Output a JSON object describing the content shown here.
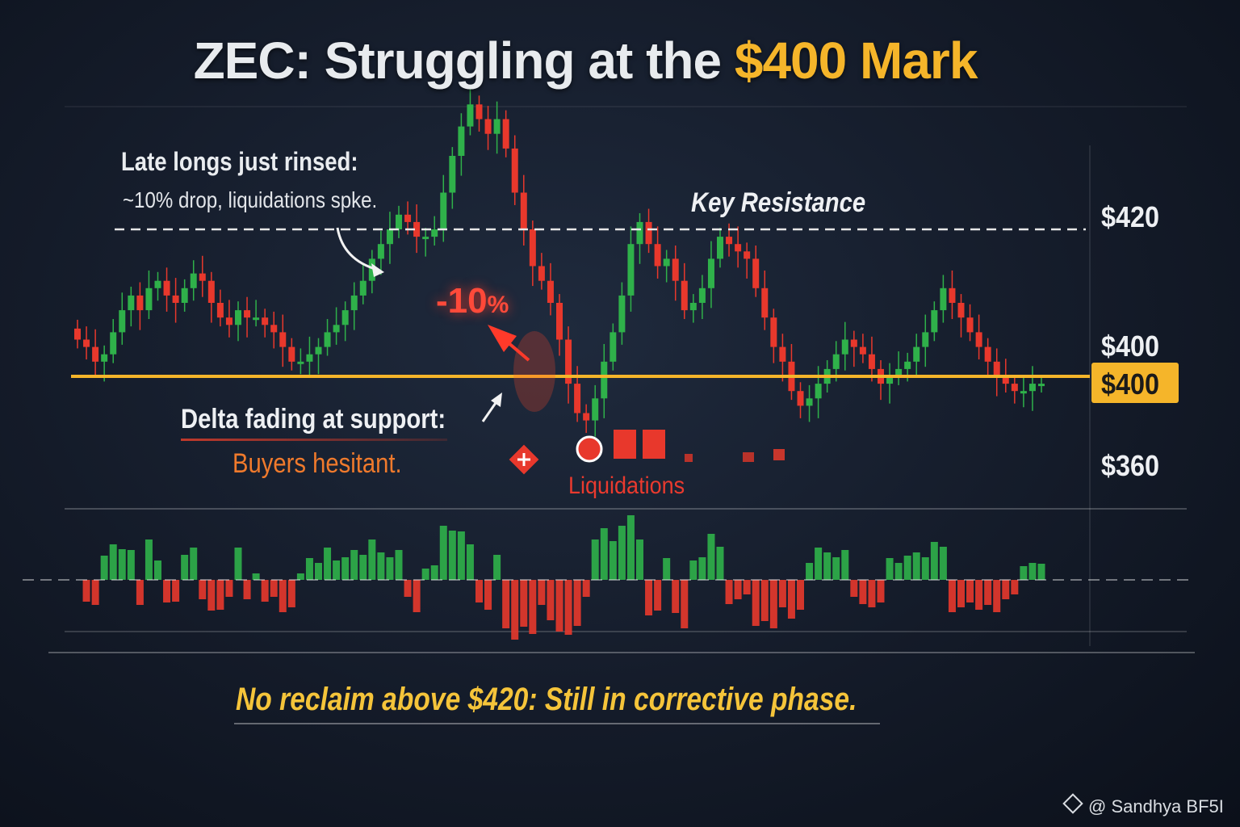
{
  "title": {
    "main": "ZEC: Struggling at the ",
    "accent": "$400 Mark"
  },
  "annotations": {
    "late_longs": "Late longs just rinsed:",
    "drop_note": "~10% drop, liquidations spke.",
    "key_resistance": "Key Resistance",
    "delta_fading": "Delta fading at support:",
    "buyers": "Buyers hesitant.",
    "liquidations": "Liquidations",
    "drop_value": "-10",
    "drop_pct": "%",
    "footer": "No reclaim above $420: Still in corrective phase."
  },
  "price_labels": {
    "p420": "$420",
    "p400": "$400",
    "p400_highlight": "$400",
    "p360": "$360"
  },
  "watermark": {
    "icon": "binance-diamond-icon",
    "text": "@ Sandhya BF5I"
  },
  "colors": {
    "up": "#2fb14a",
    "down": "#e8382c",
    "support": "#f5b52a",
    "resistance": "#e6e6e6",
    "accent": "#f5b52a"
  },
  "chart_data": {
    "type": "candlestick",
    "title": "ZEC: Struggling at the $400 Mark",
    "levels": {
      "resistance": 420,
      "support": 400
    },
    "close": [
      405,
      404,
      402,
      403,
      406,
      409,
      411,
      409,
      412,
      413,
      411,
      410,
      412,
      414,
      413,
      410,
      408,
      407,
      409,
      408,
      408,
      407,
      406,
      404,
      402,
      402,
      403,
      404,
      406,
      407,
      409,
      411,
      413,
      416,
      418,
      420,
      422,
      421,
      419,
      419,
      420,
      425,
      430,
      434,
      437,
      435,
      433,
      435,
      431,
      425,
      420,
      415,
      413,
      410,
      405,
      399,
      395,
      394,
      397,
      402,
      406,
      411,
      418,
      421,
      418,
      415,
      416,
      413,
      409,
      410,
      412,
      416,
      419,
      418,
      417,
      416,
      412,
      408,
      404,
      402,
      398,
      396,
      397,
      399,
      401,
      403,
      405,
      404,
      403,
      401,
      399,
      400,
      401,
      402,
      404,
      406,
      409,
      412,
      410,
      408,
      406,
      404,
      402,
      400,
      399,
      398,
      398,
      399,
      399
    ]
  }
}
